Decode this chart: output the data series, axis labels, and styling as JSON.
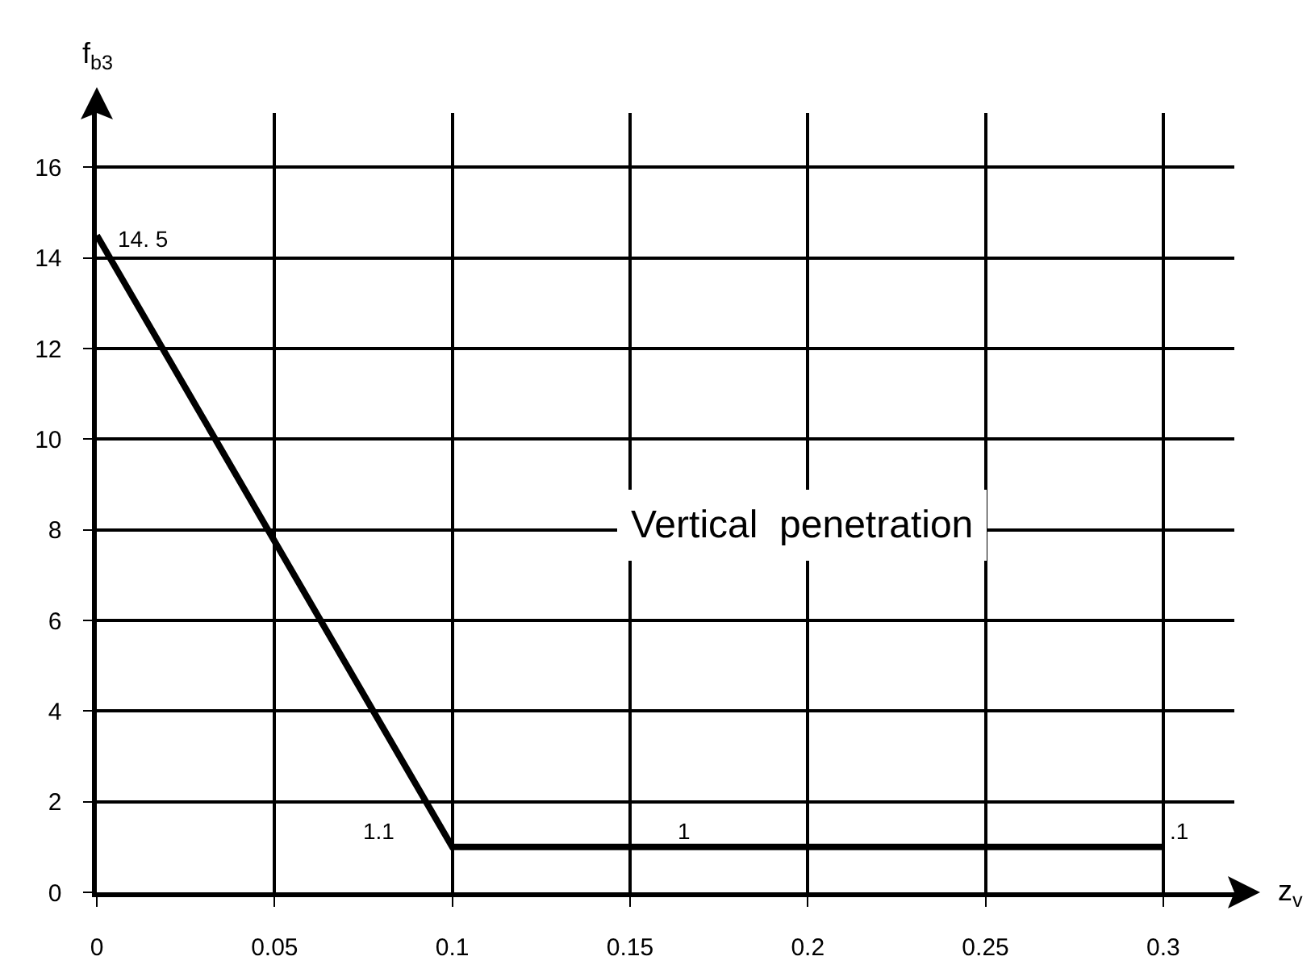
{
  "chart_data": {
    "type": "line",
    "xlabel": "z$_{v}$",
    "ylabel": "f$_{b3}$",
    "x": [
      0,
      0.1,
      0.3
    ],
    "series": [
      {
        "color": "#000000",
        "values": [
          14.5,
          1,
          1
        ]
      }
    ],
    "xlim": [
      0,
      0.32
    ],
    "ylim": [
      0,
      17.2
    ],
    "xticks": [
      0,
      0.05,
      0.1,
      0.15,
      0.2,
      0.25,
      0.3
    ],
    "yticks": [
      0,
      2,
      4,
      6,
      8,
      10,
      12,
      14,
      16
    ],
    "grid": true,
    "marker": "none",
    "line_style": "solid",
    "annotations": [
      "Vertical  penetration",
      {
        "text": "14. 5",
        "x": 0,
        "y": 14.5
      },
      {
        "text": "1.1",
        "x": 0.1,
        "y": 1
      },
      {
        "text": "1",
        "x": 0.165,
        "y": 1
      },
      {
        "text": ".1",
        "x": 0.3,
        "y": 1
      }
    ]
  }
}
